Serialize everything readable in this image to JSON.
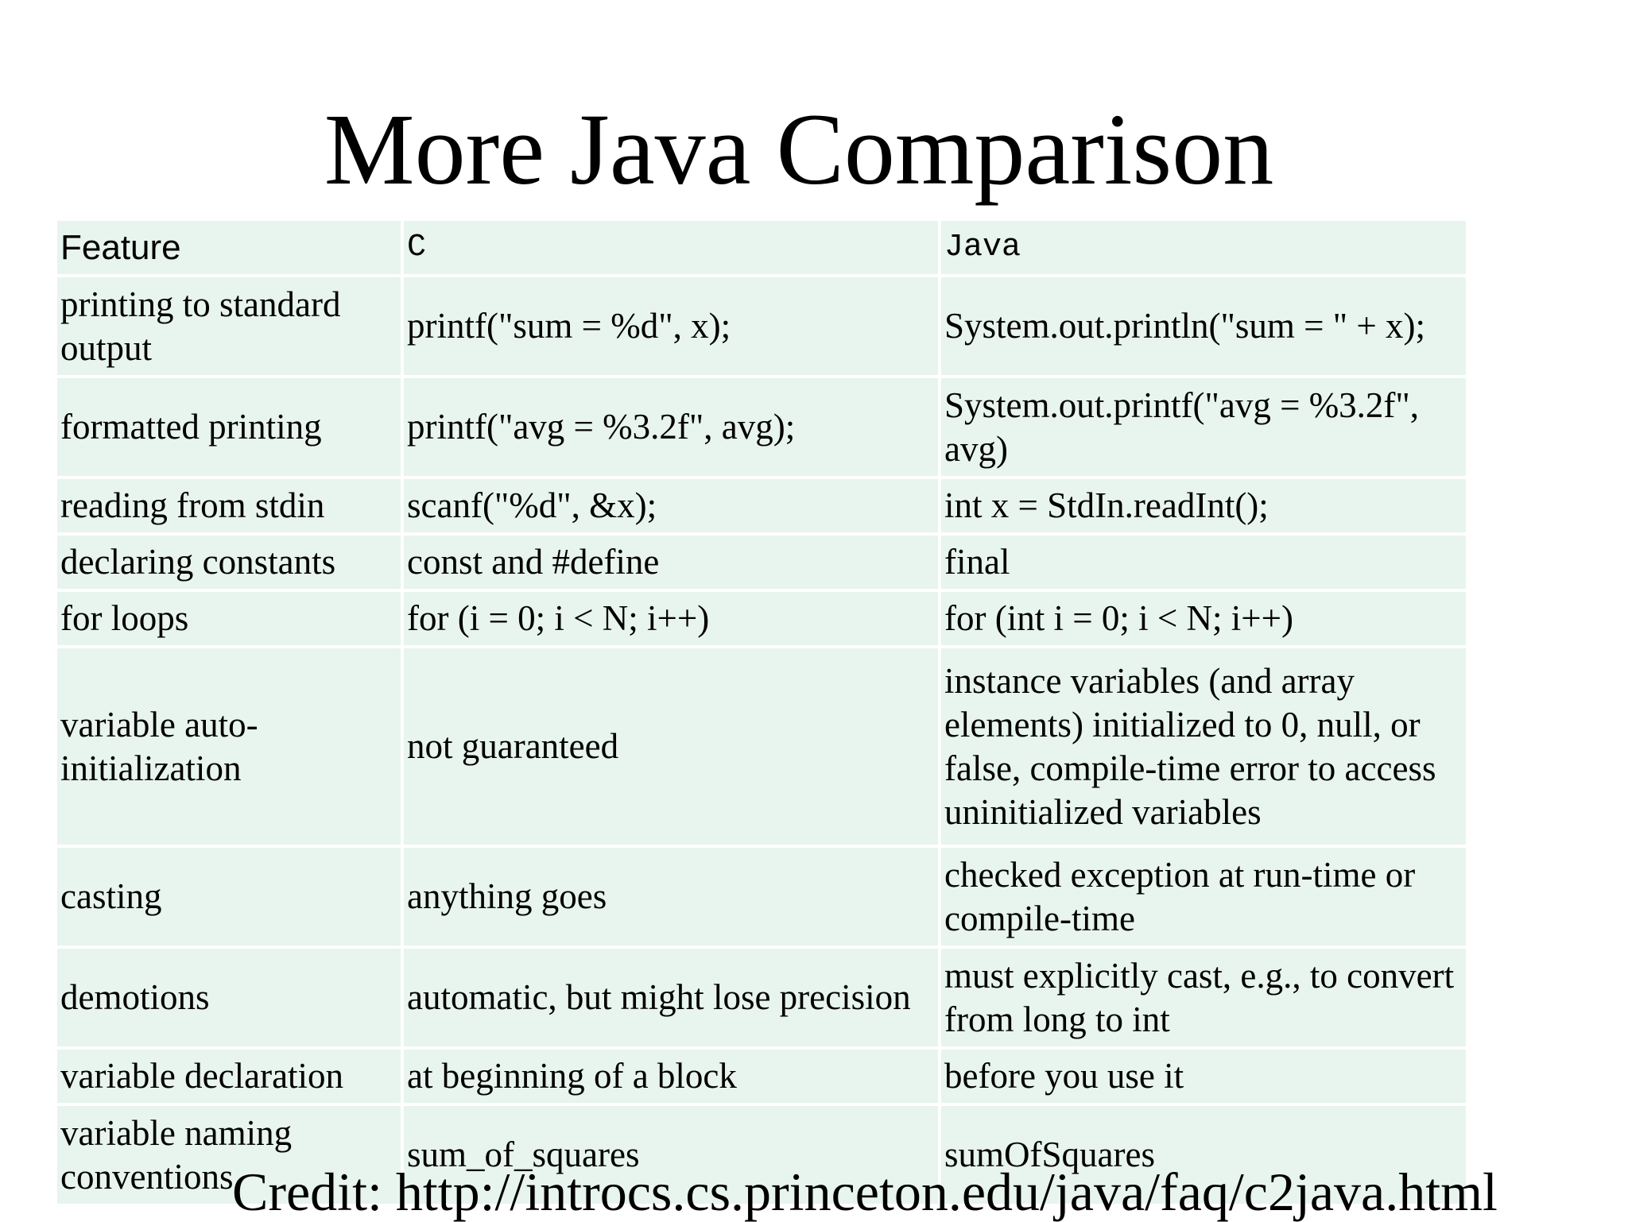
{
  "slide": {
    "title": "More Java Comparison",
    "credit": "Credit: http://introcs.cs.princeton.edu/java/faq/c2java.html"
  },
  "table": {
    "headers": [
      "Feature",
      "C",
      "Java"
    ],
    "rows": [
      [
        "printing to standard output",
        "printf(\"sum = %d\", x);",
        "System.out.println(\"sum = \" + x);"
      ],
      [
        "formatted printing",
        "printf(\"avg = %3.2f\", avg);",
        "System.out.printf(\"avg = %3.2f\", avg)"
      ],
      [
        "reading from stdin",
        "scanf(\"%d\", &x);",
        "int x = StdIn.readInt();"
      ],
      [
        "declaring constants",
        "const and #define",
        "final"
      ],
      [
        "for loops",
        "for (i = 0; i < N; i++)",
        "for (int i = 0; i < N; i++)"
      ],
      [
        "variable auto-initialization",
        "not guaranteed",
        "instance variables (and array elements) initialized to 0, null, or false, compile-time error to access uninitialized variables"
      ],
      [
        "casting",
        "anything goes",
        "checked exception at run-time or compile-time"
      ],
      [
        "demotions",
        "automatic, but might lose precision",
        "must explicitly cast, e.g., to convert from long to int"
      ],
      [
        "variable declaration",
        "at beginning of a block",
        "before you use it"
      ],
      [
        "variable naming conventions",
        "sum_of_squares",
        "sumOfSquares"
      ]
    ]
  },
  "colors": {
    "cell_background": "#e8f4ee",
    "cell_border": "#ffffff",
    "text": "#000000"
  }
}
